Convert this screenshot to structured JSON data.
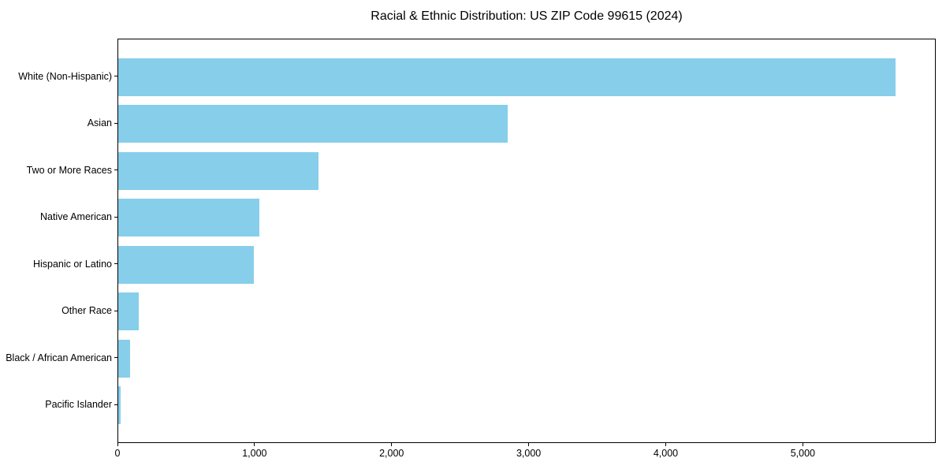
{
  "title": "Racial & Ethnic Distribution: US ZIP Code 99615 (2024)",
  "chart_data": {
    "type": "bar",
    "orientation": "horizontal",
    "title": "Racial & Ethnic Distribution: US ZIP Code 99615 (2024)",
    "categories": [
      "White (Non-Hispanic)",
      "Asian",
      "Two or More Races",
      "Native American",
      "Hispanic or Latino",
      "Other Race",
      "Black / African American",
      "Pacific Islander"
    ],
    "values": [
      5670,
      2840,
      1460,
      1030,
      990,
      150,
      85,
      16
    ],
    "xlabel": "",
    "ylabel": "",
    "xlim": [
      0,
      5970
    ],
    "x_ticks": [
      0,
      1000,
      2000,
      3000,
      4000,
      5000
    ],
    "x_tick_labels": [
      "0",
      "1,000",
      "2,000",
      "3,000",
      "4,000",
      "5,000"
    ],
    "bar_color": "#87CEEB",
    "grid": false,
    "legend": false,
    "background_color": "#FFFFFF",
    "axis_color": "#000000",
    "text_color": "#000000"
  }
}
